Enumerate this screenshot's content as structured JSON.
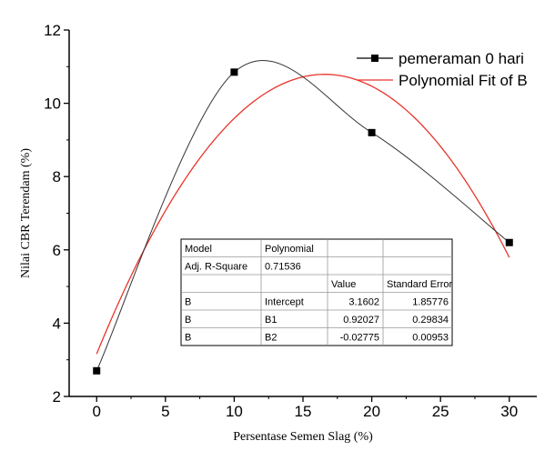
{
  "chart_data": {
    "type": "scatter",
    "title": "",
    "xlabel": "Persentase Semen Slag (%)",
    "ylabel": "Nilai CBR Terendam (%)",
    "xlim": [
      -2,
      32
    ],
    "ylim": [
      2,
      12
    ],
    "xticks": [
      0,
      5,
      10,
      15,
      20,
      25,
      30
    ],
    "yticks": [
      2,
      4,
      6,
      8,
      10,
      12
    ],
    "grid": false,
    "legend_position": "top-right",
    "series": [
      {
        "name": "pemeraman 0 hari",
        "color": "#000000",
        "marker": "square",
        "line": "smooth",
        "x": [
          0,
          10,
          20,
          30
        ],
        "y": [
          2.7,
          10.85,
          9.2,
          6.2
        ]
      },
      {
        "name": "Polynomial Fit of B",
        "color": "#e8342a",
        "marker": "none",
        "fit": {
          "b0": 3.1602,
          "b1": 0.92027,
          "b2": -0.02775
        },
        "x_range": [
          0,
          30
        ]
      }
    ],
    "fit_table": {
      "rows": [
        [
          "Model",
          "Polynomial",
          "",
          ""
        ],
        [
          "Adj. R-Square",
          "0.71536",
          "",
          ""
        ],
        [
          "",
          "",
          "Value",
          "Standard Error"
        ],
        [
          "B",
          "Intercept",
          "3.1602",
          "1.85776"
        ],
        [
          "B",
          "B1",
          "0.92027",
          "0.29834"
        ],
        [
          "B",
          "B2",
          "-0.02775",
          "0.00953"
        ]
      ]
    }
  }
}
